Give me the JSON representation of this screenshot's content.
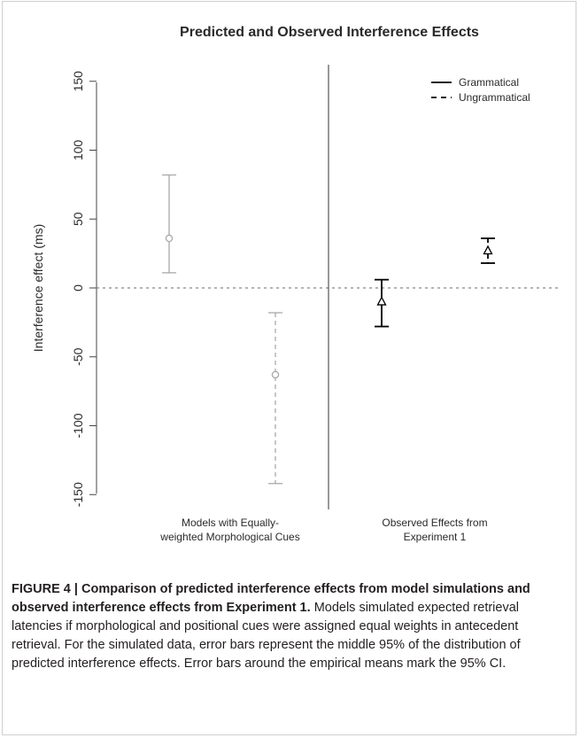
{
  "chart_data": {
    "type": "scatter",
    "title": "Predicted and Observed Interference Effects",
    "ylabel": "Interference effect (ms)",
    "ylim": [
      -150,
      150
    ],
    "yticks": [
      -150,
      -100,
      -50,
      0,
      50,
      100,
      150
    ],
    "panels": [
      {
        "label_line1": "Models with Equally-",
        "label_line2": "weighted Morphological Cues"
      },
      {
        "label_line1": "Observed Effects from",
        "label_line2": "Experiment 1"
      }
    ],
    "legend": {
      "placement": "top-right",
      "entries": [
        {
          "name": "Grammatical",
          "style": "solid"
        },
        {
          "name": "Ungrammatical",
          "style": "dashed"
        }
      ]
    },
    "series": [
      {
        "name": "Grammatical",
        "points": [
          {
            "panel": 0,
            "mean": 36,
            "lower": 11,
            "upper": 82,
            "marker": "circle",
            "color": "#a9a9a9"
          },
          {
            "panel": 1,
            "mean": -10,
            "lower": -28,
            "upper": 6,
            "marker": "triangle",
            "color": "#000000"
          }
        ]
      },
      {
        "name": "Ungrammatical",
        "points": [
          {
            "panel": 0,
            "mean": -63,
            "lower": -142,
            "upper": -18,
            "marker": "circle",
            "color": "#a9a9a9"
          },
          {
            "panel": 1,
            "mean": 27,
            "lower": 18,
            "upper": 36,
            "marker": "triangle",
            "color": "#000000"
          }
        ]
      }
    ],
    "reference_line": {
      "y": 0,
      "style": "dotted"
    }
  },
  "caption": {
    "heading": "FIGURE 4 | Comparison of predicted interference effects from model simulations and observed interference effects from Experiment 1.",
    "body": "Models simulated expected retrieval latencies if morphological and positional cues were assigned equal weights in antecedent retrieval. For the simulated data, error bars represent the middle 95% of the distribution of predicted interference effects. Error bars around the empirical means mark the 95% CI."
  }
}
